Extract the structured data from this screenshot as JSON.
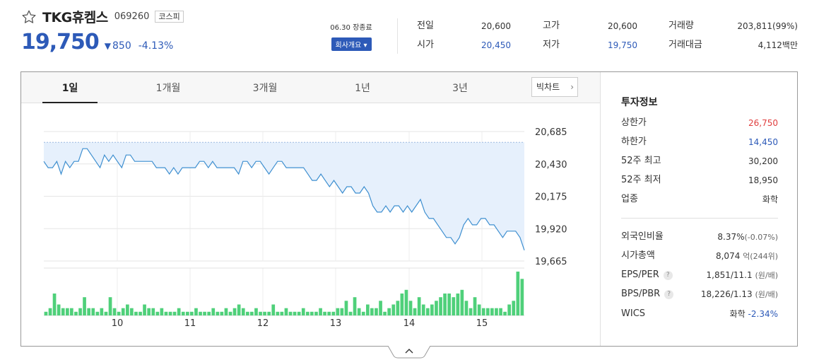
{
  "stock": {
    "name": "TKG휴켐스",
    "code": "069260",
    "market": "코스피",
    "price": "19,750",
    "change": "850",
    "change_rate": "-4.13%",
    "close_label": "06.30 장종료",
    "company_button": "회사개요 ▾"
  },
  "summary": [
    {
      "label": "전일",
      "value": "20,600",
      "color": ""
    },
    {
      "label": "시가",
      "value": "20,450",
      "color": "blue"
    },
    {
      "label": "고가",
      "value": "20,600",
      "color": ""
    },
    {
      "label": "저가",
      "value": "19,750",
      "color": "blue"
    },
    {
      "label": "거래량",
      "value": "203,811(99%)",
      "color": ""
    },
    {
      "label": "거래대금",
      "value": "4,112백만",
      "color": ""
    }
  ],
  "tabs": [
    "1일",
    "1개월",
    "3개월",
    "1년",
    "3년"
  ],
  "bigchart_label": "빅차트",
  "chart_data": {
    "type": "line",
    "y_ticks": [
      "20,685",
      "20,430",
      "20,175",
      "19,920",
      "19,665"
    ],
    "x_ticks": [
      "10",
      "11",
      "12",
      "13",
      "14",
      "15"
    ],
    "ylim": [
      19665,
      20685
    ],
    "reference_price": 20600,
    "price": [
      20450,
      20400,
      20400,
      20450,
      20350,
      20450,
      20400,
      20450,
      20450,
      20550,
      20550,
      20500,
      20450,
      20400,
      20500,
      20450,
      20500,
      20450,
      20400,
      20500,
      20500,
      20450,
      20450,
      20450,
      20450,
      20450,
      20400,
      20400,
      20400,
      20350,
      20400,
      20350,
      20400,
      20400,
      20400,
      20400,
      20450,
      20450,
      20400,
      20450,
      20400,
      20400,
      20400,
      20400,
      20400,
      20350,
      20450,
      20450,
      20400,
      20450,
      20450,
      20400,
      20350,
      20400,
      20450,
      20450,
      20400,
      20400,
      20400,
      20400,
      20400,
      20350,
      20300,
      20300,
      20350,
      20300,
      20250,
      20300,
      20250,
      20200,
      20250,
      20250,
      20200,
      20200,
      20250,
      20200,
      20100,
      20050,
      20050,
      20100,
      20050,
      20100,
      20100,
      20050,
      20100,
      20050,
      20100,
      20150,
      20050,
      20000,
      20000,
      19950,
      19900,
      19850,
      19850,
      19800,
      19850,
      19950,
      20000,
      19950,
      19950,
      20000,
      20000,
      19950,
      19950,
      19900,
      19850,
      19900,
      19900,
      19900,
      19850,
      19750
    ],
    "volume": [
      1,
      2,
      6,
      3,
      2,
      2,
      2,
      1,
      2,
      5,
      2,
      2,
      1,
      2,
      1,
      5,
      2,
      1,
      2,
      3,
      2,
      1,
      1,
      3,
      2,
      2,
      1,
      2,
      1,
      1,
      1,
      2,
      1,
      1,
      1,
      2,
      1,
      1,
      1,
      2,
      1,
      1,
      2,
      1,
      2,
      3,
      2,
      1,
      1,
      2,
      1,
      1,
      1,
      3,
      1,
      1,
      2,
      1,
      1,
      1,
      2,
      1,
      1,
      1,
      2,
      1,
      1,
      1,
      2,
      2,
      4,
      1,
      5,
      2,
      1,
      3,
      2,
      2,
      4,
      1,
      2,
      3,
      4,
      6,
      7,
      4,
      2,
      5,
      3,
      2,
      3,
      4,
      5,
      6,
      6,
      5,
      6,
      7,
      4,
      2,
      5,
      3,
      2,
      2,
      2,
      2,
      2,
      1,
      3,
      4,
      12,
      10
    ]
  },
  "invest_info": {
    "title": "투자정보",
    "rows1": [
      {
        "label": "상한가",
        "value": "26,750",
        "color": "red"
      },
      {
        "label": "하한가",
        "value": "14,450",
        "color": "blue"
      },
      {
        "label": "52주 최고",
        "value": "30,200",
        "color": ""
      },
      {
        "label": "52주 최저",
        "value": "18,950",
        "color": ""
      },
      {
        "label": "업종",
        "value": "화학",
        "color": ""
      }
    ],
    "foreign": {
      "label": "외국인비율",
      "value": "8.37%",
      "sub": "(-0.07%)"
    },
    "mcap": {
      "label": "시가총액",
      "value": "8,074",
      "unit": "억",
      "sub": "(244위)"
    },
    "eps": {
      "label": "EPS/PER",
      "value": "1,851/11.1",
      "sub": "(원/배)"
    },
    "bps": {
      "label": "BPS/PBR",
      "value": "18,226/1.13",
      "sub": "(원/배)"
    },
    "wics": {
      "label": "WICS",
      "value": "화학",
      "rate": "-2.34%"
    }
  }
}
